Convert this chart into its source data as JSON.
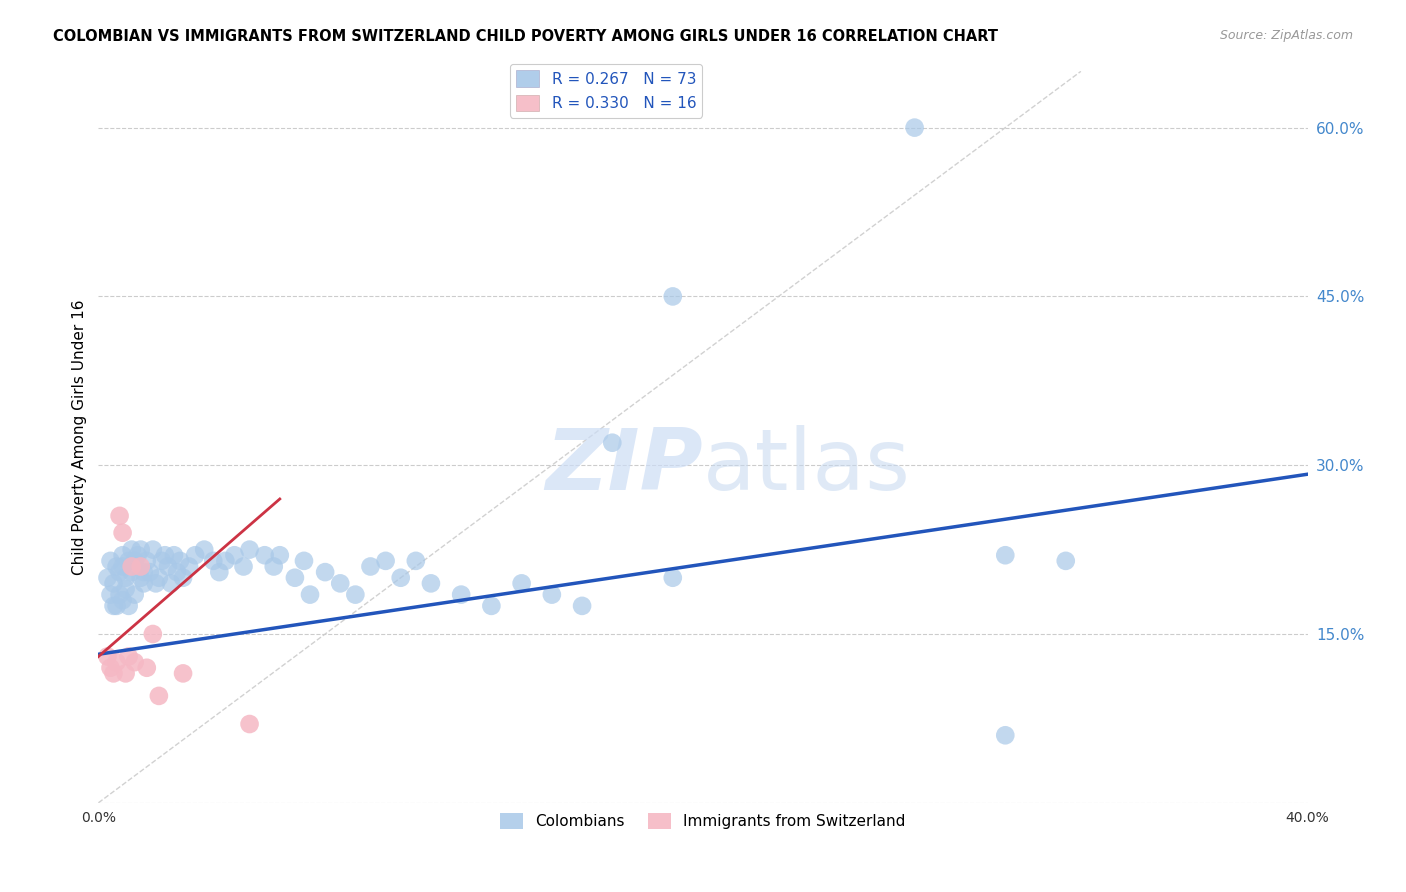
{
  "title": "COLOMBIAN VS IMMIGRANTS FROM SWITZERLAND CHILD POVERTY AMONG GIRLS UNDER 16 CORRELATION CHART",
  "source": "Source: ZipAtlas.com",
  "ylabel": "Child Poverty Among Girls Under 16",
  "ytick_values": [
    0.0,
    0.15,
    0.3,
    0.45,
    0.6
  ],
  "xlim": [
    0.0,
    0.4
  ],
  "ylim": [
    0.0,
    0.65
  ],
  "legend_label_colombians": "Colombians",
  "legend_label_swiss": "Immigrants from Switzerland",
  "blue_scatter_color": "#a8c8e8",
  "pink_scatter_color": "#f5b8c4",
  "trend_blue_color": "#2255bb",
  "trend_pink_color": "#cc3344",
  "diag_color": "#cccccc",
  "watermark_zip_color": "#ccddf0",
  "watermark_atlas_color": "#c8daf0",
  "r_colombians": 0.267,
  "r_swiss": 0.33,
  "n_colombians": 73,
  "n_swiss": 16,
  "blue_trend_x0": 0.0,
  "blue_trend_y0": 0.132,
  "blue_trend_x1": 0.4,
  "blue_trend_y1": 0.292,
  "pink_trend_x0": 0.0,
  "pink_trend_y0": 0.13,
  "pink_trend_x1": 0.06,
  "pink_trend_y1": 0.27,
  "colombians_x": [
    0.003,
    0.004,
    0.004,
    0.005,
    0.005,
    0.006,
    0.006,
    0.007,
    0.007,
    0.008,
    0.008,
    0.008,
    0.009,
    0.009,
    0.01,
    0.01,
    0.011,
    0.011,
    0.012,
    0.012,
    0.013,
    0.014,
    0.014,
    0.015,
    0.015,
    0.016,
    0.017,
    0.018,
    0.019,
    0.02,
    0.021,
    0.022,
    0.023,
    0.024,
    0.025,
    0.026,
    0.027,
    0.028,
    0.03,
    0.032,
    0.035,
    0.038,
    0.04,
    0.042,
    0.045,
    0.048,
    0.05,
    0.055,
    0.058,
    0.06,
    0.065,
    0.068,
    0.07,
    0.075,
    0.08,
    0.085,
    0.09,
    0.095,
    0.1,
    0.105,
    0.11,
    0.12,
    0.13,
    0.14,
    0.15,
    0.16,
    0.17,
    0.19,
    0.27,
    0.3,
    0.32,
    0.19,
    0.3
  ],
  "colombians_y": [
    0.2,
    0.185,
    0.215,
    0.175,
    0.195,
    0.175,
    0.21,
    0.185,
    0.205,
    0.18,
    0.21,
    0.22,
    0.19,
    0.2,
    0.215,
    0.175,
    0.205,
    0.225,
    0.185,
    0.215,
    0.22,
    0.2,
    0.225,
    0.205,
    0.195,
    0.215,
    0.205,
    0.225,
    0.195,
    0.2,
    0.215,
    0.22,
    0.21,
    0.195,
    0.22,
    0.205,
    0.215,
    0.2,
    0.21,
    0.22,
    0.225,
    0.215,
    0.205,
    0.215,
    0.22,
    0.21,
    0.225,
    0.22,
    0.21,
    0.22,
    0.2,
    0.215,
    0.185,
    0.205,
    0.195,
    0.185,
    0.21,
    0.215,
    0.2,
    0.215,
    0.195,
    0.185,
    0.175,
    0.195,
    0.185,
    0.175,
    0.32,
    0.2,
    0.6,
    0.22,
    0.215,
    0.45,
    0.06
  ],
  "swiss_x": [
    0.003,
    0.004,
    0.005,
    0.006,
    0.007,
    0.008,
    0.009,
    0.01,
    0.011,
    0.012,
    0.014,
    0.016,
    0.018,
    0.02,
    0.028,
    0.05
  ],
  "swiss_y": [
    0.13,
    0.12,
    0.115,
    0.125,
    0.255,
    0.24,
    0.115,
    0.13,
    0.21,
    0.125,
    0.21,
    0.12,
    0.15,
    0.095,
    0.115,
    0.07
  ]
}
